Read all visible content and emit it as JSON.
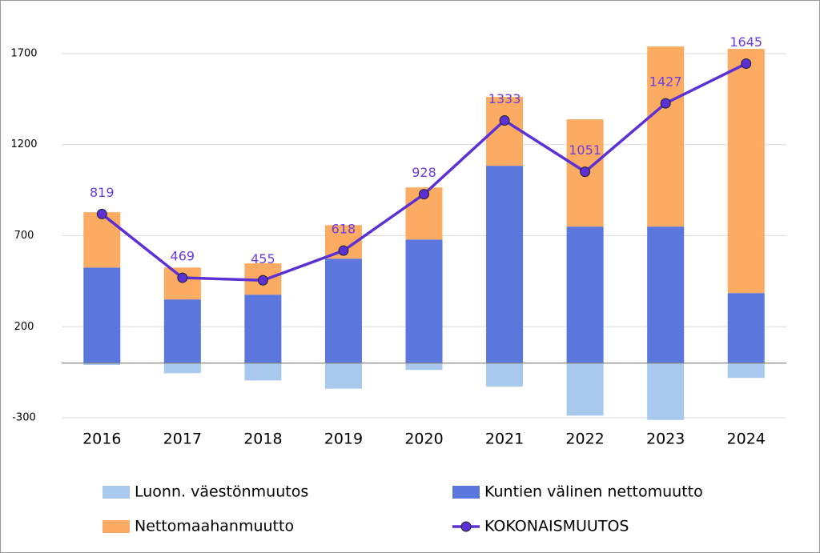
{
  "chart_data": {
    "type": "bar",
    "categories": [
      "2016",
      "2017",
      "2018",
      "2019",
      "2020",
      "2021",
      "2022",
      "2023",
      "2024"
    ],
    "series": [
      {
        "name": "Luonn. väestönmuutos",
        "type": "bar",
        "color": "#a9c8ee",
        "values": [
          -10,
          -55,
          -95,
          -140,
          -37,
          -129,
          -288,
          -312,
          -81
        ]
      },
      {
        "name": "Kuntien välinen nettomuutto",
        "type": "bar",
        "color": "#5b76dd",
        "values": [
          525,
          350,
          376,
          574,
          679,
          1084,
          750,
          750,
          385
        ]
      },
      {
        "name": "Nettomaahanmuutto",
        "type": "bar",
        "color": "#fcac62",
        "values": [
          304,
          175,
          172,
          184,
          286,
          378,
          589,
          989,
          1341
        ]
      },
      {
        "name": "KOKONAISMUUTOS",
        "type": "line",
        "color": "#5b31d6",
        "values": [
          819,
          469,
          455,
          618,
          928,
          1333,
          1051,
          1427,
          1645
        ]
      }
    ],
    "ylim": [
      -335,
      1910
    ],
    "yticks": [
      -300,
      200,
      700,
      1200,
      1700
    ],
    "grid": true
  }
}
